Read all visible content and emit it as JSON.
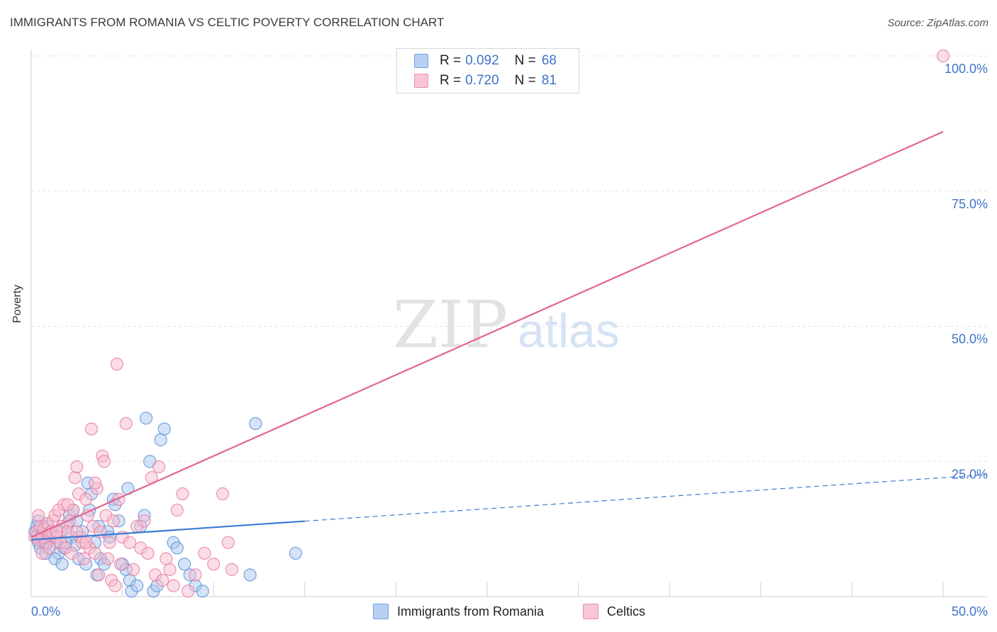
{
  "title": "IMMIGRANTS FROM ROMANIA VS CELTIC POVERTY CORRELATION CHART",
  "source": "Source: ZipAtlas.com",
  "watermark": {
    "zip": "ZIP",
    "atlas": "atlas"
  },
  "legend_top": {
    "rows": [
      {
        "r_label": "R =",
        "r_value": "0.092",
        "n_label": "N =",
        "n_value": "68"
      },
      {
        "r_label": "R =",
        "r_value": "0.720",
        "n_label": "N =",
        "n_value": "81"
      }
    ]
  },
  "legend_bottom": {
    "series1": "Immigrants from Romania",
    "series2": "Celtics"
  },
  "colors": {
    "blue_fill": "#a9c8f0",
    "blue_stroke": "#5f93d8",
    "blue_line": "#3a7bd5",
    "pink_fill": "#f7bcd0",
    "pink_stroke": "#e7809f",
    "pink_line": "#e2668f",
    "tick_text": "#3f74c8",
    "grid": "#e3e3e3"
  },
  "chart_data": {
    "type": "scatter",
    "title": "IMMIGRANTS FROM ROMANIA VS CELTIC POVERTY CORRELATION CHART",
    "xlabel": "",
    "ylabel": "Poverty",
    "xlim": [
      0,
      50
    ],
    "ylim": [
      0,
      100
    ],
    "x_tick_labels": [
      "0.0%",
      "50.0%"
    ],
    "y_ticks": [
      25,
      50,
      75,
      100
    ],
    "y_tick_labels": [
      "25.0%",
      "50.0%",
      "75.0%",
      "100.0%"
    ],
    "grid": true,
    "series": [
      {
        "name": "Immigrants from Romania",
        "r": 0.092,
        "n": 68,
        "trend": {
          "x0": 0,
          "y0": 10.5,
          "x1": 50,
          "y1": 22,
          "solid_until_x": 15
        },
        "points": [
          [
            0.2,
            12
          ],
          [
            0.3,
            11
          ],
          [
            0.4,
            10
          ],
          [
            0.5,
            12.5
          ],
          [
            0.6,
            11.5
          ],
          [
            0.7,
            10
          ],
          [
            0.8,
            9.5
          ],
          [
            0.9,
            11
          ],
          [
            1.0,
            12
          ],
          [
            1.1,
            10.5
          ],
          [
            0.3,
            13
          ],
          [
            0.5,
            9
          ],
          [
            0.8,
            8
          ],
          [
            1.2,
            11
          ],
          [
            1.4,
            10
          ],
          [
            1.5,
            8
          ],
          [
            1.6,
            12
          ],
          [
            1.8,
            9
          ],
          [
            2.0,
            13.5
          ],
          [
            2.2,
            11
          ],
          [
            1.3,
            7
          ],
          [
            1.7,
            6
          ],
          [
            2.4,
            9.5
          ],
          [
            2.5,
            14
          ],
          [
            2.6,
            7
          ],
          [
            2.8,
            12
          ],
          [
            3.0,
            6
          ],
          [
            3.1,
            21
          ],
          [
            3.2,
            16
          ],
          [
            3.3,
            19
          ],
          [
            3.5,
            10
          ],
          [
            3.6,
            4
          ],
          [
            3.7,
            13
          ],
          [
            3.8,
            7
          ],
          [
            4.0,
            6
          ],
          [
            4.2,
            12
          ],
          [
            4.3,
            11
          ],
          [
            4.5,
            18
          ],
          [
            4.6,
            17
          ],
          [
            4.8,
            14
          ],
          [
            5.0,
            6
          ],
          [
            5.2,
            5
          ],
          [
            5.3,
            20
          ],
          [
            5.4,
            3
          ],
          [
            5.5,
            1
          ],
          [
            5.8,
            2
          ],
          [
            6.0,
            13
          ],
          [
            6.2,
            15
          ],
          [
            6.3,
            33
          ],
          [
            6.5,
            25
          ],
          [
            6.7,
            1
          ],
          [
            6.9,
            2
          ],
          [
            7.1,
            29
          ],
          [
            7.3,
            31
          ],
          [
            7.8,
            10
          ],
          [
            8.0,
            9
          ],
          [
            8.4,
            6
          ],
          [
            8.7,
            4
          ],
          [
            9.0,
            2
          ],
          [
            9.4,
            1
          ],
          [
            2.1,
            15
          ],
          [
            2.3,
            16
          ],
          [
            1.9,
            10
          ],
          [
            0.9,
            13
          ],
          [
            0.4,
            14
          ],
          [
            12.3,
            32
          ],
          [
            14.5,
            8
          ],
          [
            12.0,
            4
          ]
        ]
      },
      {
        "name": "Celtics",
        "r": 0.72,
        "n": 81,
        "trend": {
          "x0": 0,
          "y0": 11,
          "x1": 50,
          "y1": 86
        },
        "points": [
          [
            0.2,
            11
          ],
          [
            0.3,
            12
          ],
          [
            0.4,
            10.5
          ],
          [
            0.5,
            13
          ],
          [
            0.6,
            11
          ],
          [
            0.7,
            12.5
          ],
          [
            0.8,
            10
          ],
          [
            0.9,
            13.5
          ],
          [
            1.0,
            11.5
          ],
          [
            1.1,
            12
          ],
          [
            1.2,
            14
          ],
          [
            1.3,
            15
          ],
          [
            1.4,
            11
          ],
          [
            1.5,
            16
          ],
          [
            1.6,
            10
          ],
          [
            1.7,
            13
          ],
          [
            1.8,
            17
          ],
          [
            1.9,
            9
          ],
          [
            2.0,
            12
          ],
          [
            2.1,
            14
          ],
          [
            2.2,
            8
          ],
          [
            2.3,
            16
          ],
          [
            2.4,
            22
          ],
          [
            2.5,
            24
          ],
          [
            2.6,
            19
          ],
          [
            2.7,
            11
          ],
          [
            2.8,
            10
          ],
          [
            2.9,
            7
          ],
          [
            3.0,
            18
          ],
          [
            3.1,
            15
          ],
          [
            3.2,
            9
          ],
          [
            3.3,
            31
          ],
          [
            3.4,
            13
          ],
          [
            3.5,
            8
          ],
          [
            3.6,
            20
          ],
          [
            3.7,
            4
          ],
          [
            3.8,
            12
          ],
          [
            3.9,
            26
          ],
          [
            4.0,
            25
          ],
          [
            4.1,
            15
          ],
          [
            4.2,
            7
          ],
          [
            4.3,
            10
          ],
          [
            4.4,
            3
          ],
          [
            4.5,
            14
          ],
          [
            4.6,
            2
          ],
          [
            4.7,
            43
          ],
          [
            4.8,
            18
          ],
          [
            4.9,
            6
          ],
          [
            5.0,
            11
          ],
          [
            5.2,
            32
          ],
          [
            5.4,
            10
          ],
          [
            5.6,
            5
          ],
          [
            5.8,
            13
          ],
          [
            6.0,
            9
          ],
          [
            6.2,
            14
          ],
          [
            6.4,
            8
          ],
          [
            6.6,
            22
          ],
          [
            6.8,
            4
          ],
          [
            7.0,
            24
          ],
          [
            7.2,
            3
          ],
          [
            7.4,
            7
          ],
          [
            7.6,
            5
          ],
          [
            7.8,
            2
          ],
          [
            8.0,
            16
          ],
          [
            8.3,
            19
          ],
          [
            8.6,
            1
          ],
          [
            9.0,
            4
          ],
          [
            9.5,
            8
          ],
          [
            10.0,
            6
          ],
          [
            10.5,
            19
          ],
          [
            10.8,
            10
          ],
          [
            11.0,
            5
          ],
          [
            0.4,
            15
          ],
          [
            0.6,
            8
          ],
          [
            1.0,
            9
          ],
          [
            1.4,
            12
          ],
          [
            2.0,
            17
          ],
          [
            2.5,
            12
          ],
          [
            3.0,
            10
          ],
          [
            3.5,
            21
          ],
          [
            50,
            100
          ]
        ]
      }
    ]
  }
}
